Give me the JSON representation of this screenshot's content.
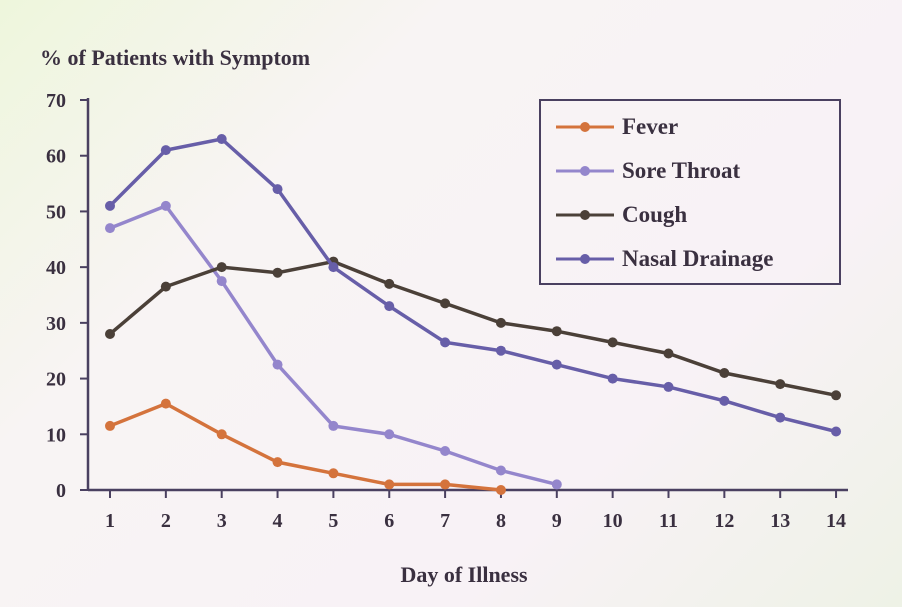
{
  "chart_data": {
    "type": "line",
    "title": "% of Patients with Symptom",
    "xlabel": "Day of Illness",
    "ylabel": "% of Patients with Symptom",
    "ylim": [
      0,
      70
    ],
    "yticks": [
      0,
      10,
      20,
      30,
      40,
      50,
      60,
      70
    ],
    "x": [
      1,
      2,
      3,
      4,
      5,
      6,
      7,
      8,
      9,
      10,
      11,
      12,
      13,
      14
    ],
    "legend_position": "top-right",
    "series": [
      {
        "name": "Fever",
        "color": "#d4733c",
        "values": [
          11.5,
          15.5,
          10,
          5,
          3,
          1,
          1,
          0,
          null,
          null,
          null,
          null,
          null,
          null
        ]
      },
      {
        "name": "Sore Throat",
        "color": "#9486cc",
        "values": [
          47,
          51,
          37.5,
          22.5,
          11.5,
          10,
          7,
          3.5,
          1,
          null,
          null,
          null,
          null,
          null
        ]
      },
      {
        "name": "Cough",
        "color": "#4b4038",
        "values": [
          28,
          36.5,
          40,
          39,
          41,
          37,
          33.5,
          30,
          28.5,
          26.5,
          24.5,
          21,
          19,
          17
        ]
      },
      {
        "name": "Nasal Drainage",
        "color": "#675ea8",
        "values": [
          51,
          61,
          63,
          54,
          40,
          33,
          26.5,
          25,
          22.5,
          20,
          18.5,
          16,
          13,
          10.5
        ]
      }
    ]
  }
}
